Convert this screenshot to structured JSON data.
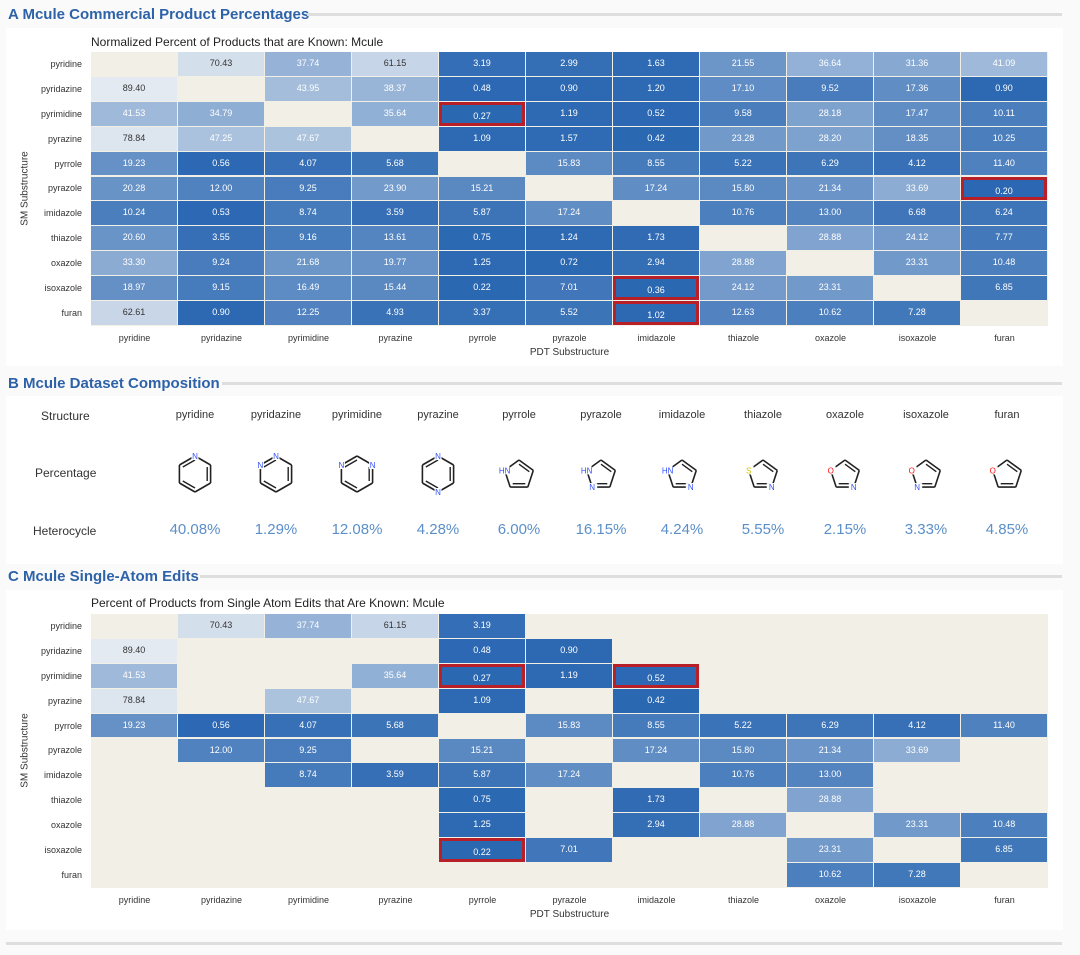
{
  "sections": {
    "a_title": "A  Mcule Commercial Product Percentages",
    "b_title": "B  Mcule Dataset Composition",
    "c_title": "C  Mcule Single-Atom Edits"
  },
  "composition": {
    "row_structure": "Structure",
    "row_percentage": "Percentage",
    "row_heterocycle": "Heterocycle",
    "names": [
      "pyridine",
      "pyridazine",
      "pyrimidine",
      "pyrazine",
      "pyrrole",
      "pyrazole",
      "imidazole",
      "thiazole",
      "oxazole",
      "isoxazole",
      "furan"
    ],
    "percentages": [
      "40.08%",
      "1.29%",
      "12.08%",
      "4.28%",
      "6.00%",
      "16.15%",
      "4.24%",
      "5.55%",
      "2.15%",
      "3.33%",
      "4.85%"
    ],
    "atom_colors": {
      "N": "#3050f8",
      "O": "#ff0d0d",
      "S": "#c8c800",
      "H": "#3050f8"
    }
  },
  "colors": {
    "empty": "#f2efe7",
    "highlight": "#b81f26",
    "scale_low": "#e4eaf1",
    "scale_high": "#2a67b2"
  },
  "chart_data": [
    {
      "type": "heatmap",
      "title": "Normalized Percent of Products that are Known: Mcule",
      "xlabel": "PDT Substructure",
      "ylabel": "SM Substructure",
      "x": [
        "pyridine",
        "pyridazine",
        "pyrimidine",
        "pyrazine",
        "pyrrole",
        "pyrazole",
        "imidazole",
        "thiazole",
        "oxazole",
        "isoxazole",
        "furan"
      ],
      "y": [
        "pyridine",
        "pyridazine",
        "pyrimidine",
        "pyrazine",
        "pyrrole",
        "pyrazole",
        "imidazole",
        "thiazole",
        "oxazole",
        "isoxazole",
        "furan"
      ],
      "values": [
        [
          null,
          "70.43",
          "37.74",
          "61.15",
          "3.19",
          "2.99",
          "1.63",
          "21.55",
          "36.64",
          "31.36",
          "41.09"
        ],
        [
          "89.40",
          null,
          "43.95",
          "38.37",
          "0.48",
          "0.90",
          "1.20",
          "17.10",
          "9.52",
          "17.36",
          "0.90"
        ],
        [
          "41.53",
          "34.79",
          null,
          "35.64",
          "0.27",
          "1.19",
          "0.52",
          "9.58",
          "28.18",
          "17.47",
          "10.11"
        ],
        [
          "78.84",
          "47.25",
          "47.67",
          null,
          "1.09",
          "1.57",
          "0.42",
          "23.28",
          "28.20",
          "18.35",
          "10.25"
        ],
        [
          "19.23",
          "0.56",
          "4.07",
          "5.68",
          null,
          "15.83",
          "8.55",
          "5.22",
          "6.29",
          "4.12",
          "11.40"
        ],
        [
          "20.28",
          "12.00",
          "9.25",
          "23.90",
          "15.21",
          null,
          "17.24",
          "15.80",
          "21.34",
          "33.69",
          "0.20"
        ],
        [
          "10.24",
          "0.53",
          "8.74",
          "3.59",
          "5.87",
          "17.24",
          null,
          "10.76",
          "13.00",
          "6.68",
          "6.24"
        ],
        [
          "20.60",
          "3.55",
          "9.16",
          "13.61",
          "0.75",
          "1.24",
          "1.73",
          null,
          "28.88",
          "24.12",
          "7.77"
        ],
        [
          "33.30",
          "9.24",
          "21.68",
          "19.77",
          "1.25",
          "0.72",
          "2.94",
          "28.88",
          null,
          "23.31",
          "10.48"
        ],
        [
          "18.97",
          "9.15",
          "16.49",
          "15.44",
          "0.22",
          "7.01",
          "0.36",
          "24.12",
          "23.31",
          null,
          "6.85"
        ],
        [
          "62.61",
          "0.90",
          "12.25",
          "4.93",
          "3.37",
          "5.52",
          "1.02",
          "12.63",
          "10.62",
          "7.28",
          null
        ]
      ],
      "highlighted": [
        [
          2,
          4
        ],
        [
          5,
          10
        ],
        [
          9,
          6
        ],
        [
          10,
          6
        ]
      ]
    },
    {
      "type": "heatmap",
      "title": "Percent of Products from Single Atom Edits that Are Known: Mcule",
      "xlabel": "PDT Substructure",
      "ylabel": "SM Substructure",
      "x": [
        "pyridine",
        "pyridazine",
        "pyrimidine",
        "pyrazine",
        "pyrrole",
        "pyrazole",
        "imidazole",
        "thiazole",
        "oxazole",
        "isoxazole",
        "furan"
      ],
      "y": [
        "pyridine",
        "pyridazine",
        "pyrimidine",
        "pyrazine",
        "pyrrole",
        "pyrazole",
        "imidazole",
        "thiazole",
        "oxazole",
        "isoxazole",
        "furan"
      ],
      "values": [
        [
          null,
          "70.43",
          "37.74",
          "61.15",
          "3.19",
          null,
          null,
          null,
          null,
          null,
          null
        ],
        [
          "89.40",
          null,
          null,
          null,
          "0.48",
          "0.90",
          null,
          null,
          null,
          null,
          null
        ],
        [
          "41.53",
          null,
          null,
          "35.64",
          "0.27",
          "1.19",
          "0.52",
          null,
          null,
          null,
          null
        ],
        [
          "78.84",
          null,
          "47.67",
          null,
          "1.09",
          null,
          "0.42",
          null,
          null,
          null,
          null
        ],
        [
          "19.23",
          "0.56",
          "4.07",
          "5.68",
          null,
          "15.83",
          "8.55",
          "5.22",
          "6.29",
          "4.12",
          "11.40"
        ],
        [
          null,
          "12.00",
          "9.25",
          null,
          "15.21",
          null,
          "17.24",
          "15.80",
          "21.34",
          "33.69",
          null
        ],
        [
          null,
          null,
          "8.74",
          "3.59",
          "5.87",
          "17.24",
          null,
          "10.76",
          "13.00",
          null,
          null
        ],
        [
          null,
          null,
          null,
          null,
          "0.75",
          null,
          "1.73",
          null,
          "28.88",
          null,
          null
        ],
        [
          null,
          null,
          null,
          null,
          "1.25",
          null,
          "2.94",
          "28.88",
          null,
          "23.31",
          "10.48"
        ],
        [
          null,
          null,
          null,
          null,
          "0.22",
          "7.01",
          null,
          null,
          "23.31",
          null,
          "6.85"
        ],
        [
          null,
          null,
          null,
          null,
          null,
          null,
          null,
          null,
          "10.62",
          "7.28",
          null
        ]
      ],
      "highlighted": [
        [
          2,
          4
        ],
        [
          2,
          6
        ],
        [
          9,
          4
        ]
      ]
    }
  ]
}
